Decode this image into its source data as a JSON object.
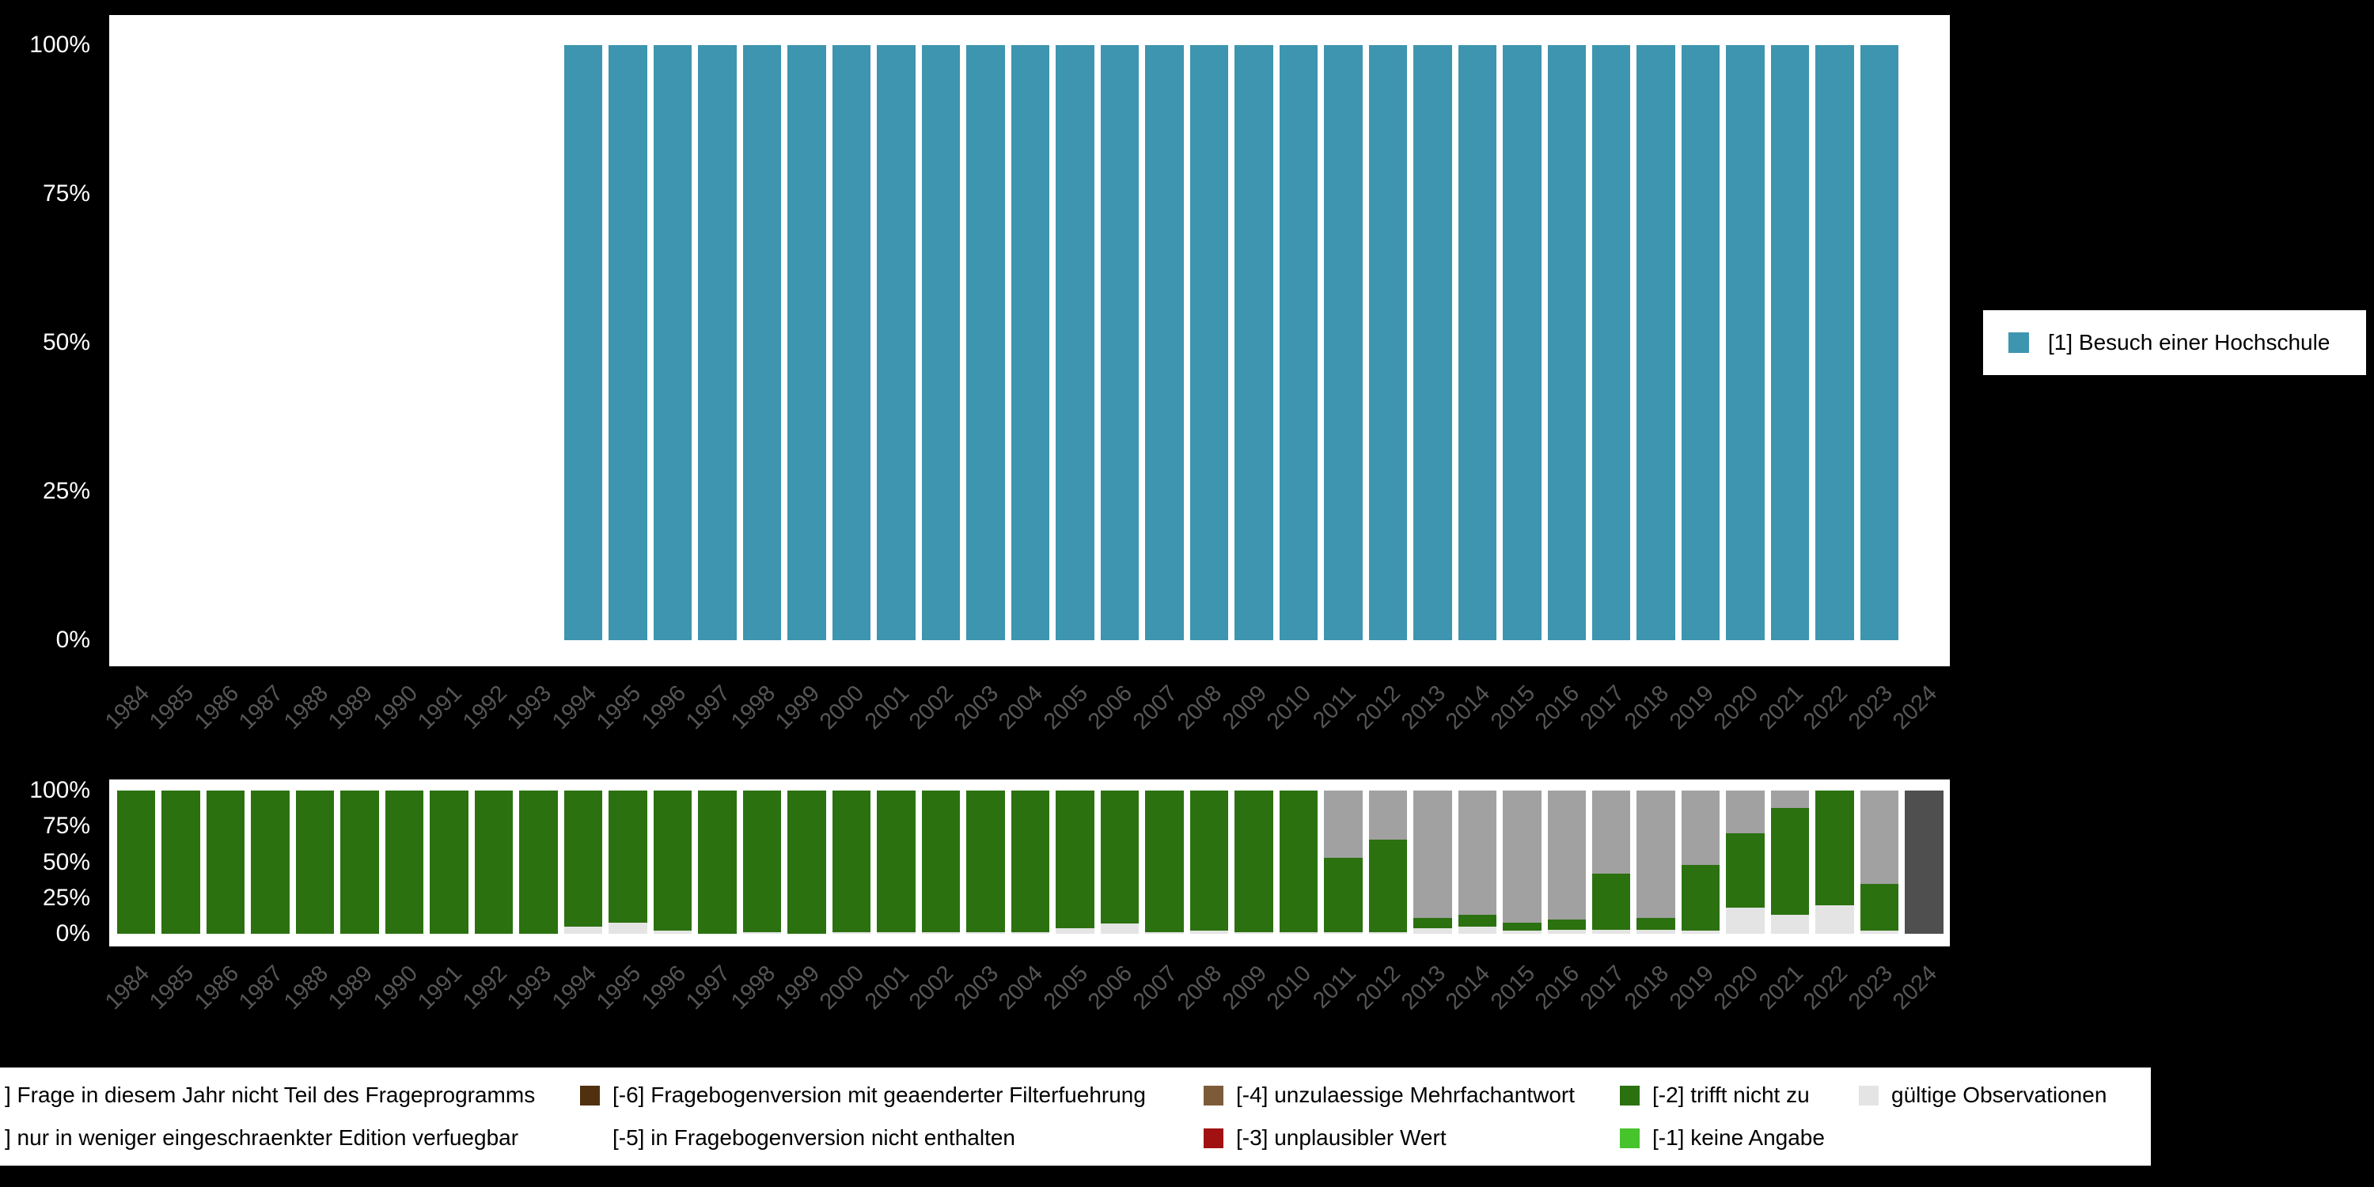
{
  "page": {
    "background": "#000000",
    "panel_background": "#ffffff"
  },
  "chart_data": [
    {
      "type": "bar",
      "title": "",
      "xlabel": "",
      "ylabel": "",
      "grid": false,
      "legend_position": "right",
      "ylim": [
        0,
        100
      ],
      "yticks": [
        "100%",
        "75%",
        "50%",
        "25%",
        "0%"
      ],
      "categories": [
        "1984",
        "1985",
        "1986",
        "1987",
        "1988",
        "1989",
        "1990",
        "1991",
        "1992",
        "1993",
        "1994",
        "1995",
        "1996",
        "1997",
        "1998",
        "1999",
        "2000",
        "2001",
        "2002",
        "2003",
        "2004",
        "2005",
        "2006",
        "2007",
        "2008",
        "2009",
        "2010",
        "2011",
        "2012",
        "2013",
        "2014",
        "2015",
        "2016",
        "2017",
        "2018",
        "2019",
        "2020",
        "2021",
        "2022",
        "2023",
        "2024"
      ],
      "series": [
        {
          "name": "[1] Besuch einer Hochschule",
          "color": "#3d95af",
          "values": [
            0,
            0,
            0,
            0,
            0,
            0,
            0,
            0,
            0,
            0,
            100,
            100,
            100,
            100,
            100,
            100,
            100,
            100,
            100,
            100,
            100,
            100,
            100,
            100,
            100,
            100,
            100,
            100,
            100,
            100,
            100,
            100,
            100,
            100,
            100,
            100,
            100,
            100,
            100,
            100,
            0
          ]
        }
      ]
    },
    {
      "type": "bar",
      "stacked": true,
      "title": "",
      "xlabel": "",
      "ylabel": "",
      "grid": false,
      "ylim": [
        0,
        100
      ],
      "yticks": [
        "100%",
        "75%",
        "50%",
        "25%",
        "0%"
      ],
      "categories": [
        "1984",
        "1985",
        "1986",
        "1987",
        "1988",
        "1989",
        "1990",
        "1991",
        "1992",
        "1993",
        "1994",
        "1995",
        "1996",
        "1997",
        "1998",
        "1999",
        "2000",
        "2001",
        "2002",
        "2003",
        "2004",
        "2005",
        "2006",
        "2007",
        "2008",
        "2009",
        "2010",
        "2011",
        "2012",
        "2013",
        "2014",
        "2015",
        "2016",
        "2017",
        "2018",
        "2019",
        "2020",
        "2021",
        "2022",
        "2023",
        "2024"
      ],
      "series": [
        {
          "name": "gültige Observationen",
          "color": "#e4e4e4",
          "values": [
            0,
            0,
            0,
            0,
            0,
            0,
            0,
            0,
            0,
            0,
            5,
            8,
            2,
            0,
            1,
            0,
            1,
            1,
            1,
            1,
            1,
            4,
            7,
            1,
            2,
            1,
            1,
            1,
            1,
            4,
            5,
            2,
            3,
            3,
            3,
            2,
            18,
            13,
            20,
            2,
            0
          ]
        },
        {
          "name": "[-1] keine Angabe",
          "color": "#47c32c",
          "values": [
            0,
            0,
            0,
            0,
            0,
            0,
            0,
            0,
            0,
            0,
            0,
            0,
            0,
            0,
            0,
            0,
            0,
            0,
            0,
            0,
            0,
            0,
            0,
            0,
            0,
            0,
            0,
            0,
            0,
            0,
            0,
            0,
            0,
            0,
            0,
            0,
            0,
            0,
            0,
            0,
            0
          ]
        },
        {
          "name": "[-2] trifft nicht zu",
          "color": "#2b7110",
          "values": [
            100,
            100,
            100,
            100,
            100,
            100,
            100,
            100,
            100,
            100,
            95,
            92,
            98,
            100,
            99,
            100,
            99,
            99,
            99,
            99,
            99,
            96,
            93,
            99,
            98,
            99,
            99,
            52,
            65,
            7,
            8,
            6,
            7,
            39,
            8,
            46,
            52,
            75,
            80,
            33,
            0
          ]
        },
        {
          "name": "nur in weniger eingeschraenkter Edition verfuegbar",
          "color": "#a1a1a1",
          "values": [
            0,
            0,
            0,
            0,
            0,
            0,
            0,
            0,
            0,
            0,
            0,
            0,
            0,
            0,
            0,
            0,
            0,
            0,
            0,
            0,
            0,
            0,
            0,
            0,
            0,
            0,
            0,
            47,
            34,
            89,
            87,
            92,
            90,
            58,
            89,
            52,
            30,
            12,
            0,
            65,
            0
          ]
        },
        {
          "name": "Frage in diesem Jahr nicht Teil des Frageprogramms",
          "color": "#4f4f4f",
          "values": [
            0,
            0,
            0,
            0,
            0,
            0,
            0,
            0,
            0,
            0,
            0,
            0,
            0,
            0,
            0,
            0,
            0,
            0,
            0,
            0,
            0,
            0,
            0,
            0,
            0,
            0,
            0,
            0,
            0,
            0,
            0,
            0,
            0,
            0,
            0,
            0,
            0,
            0,
            0,
            0,
            100
          ]
        }
      ]
    }
  ],
  "main_legend": {
    "items": [
      {
        "label": "[1] Besuch einer Hochschule",
        "color": "#3d95af"
      }
    ]
  },
  "missing_legend": {
    "columns": [
      {
        "rows": [
          {
            "label": "] Frage in diesem Jahr nicht Teil des Frageprogramms",
            "color": null
          },
          {
            "label": "] nur in weniger eingeschraenkter Edition verfuegbar",
            "color": null
          }
        ]
      },
      {
        "rows": [
          {
            "label": "[-6] Fragebogenversion mit geaenderter Filterfuehrung",
            "color": "#50300f"
          },
          {
            "label": "[-5] in Fragebogenversion nicht enthalten",
            "color": "#ffffff"
          }
        ]
      },
      {
        "rows": [
          {
            "label": "[-4] unzulaessige Mehrfachantwort",
            "color": "#7d5b39"
          },
          {
            "label": "[-3] unplausibler Wert",
            "color": "#a21111"
          }
        ]
      },
      {
        "rows": [
          {
            "label": "[-2] trifft nicht zu",
            "color": "#2b7110"
          },
          {
            "label": "[-1] keine Angabe",
            "color": "#47c32c"
          }
        ]
      },
      {
        "rows": [
          {
            "label": "gültige Observationen",
            "color": "#e4e4e4"
          },
          {
            "label": "",
            "color": null
          }
        ]
      }
    ]
  }
}
